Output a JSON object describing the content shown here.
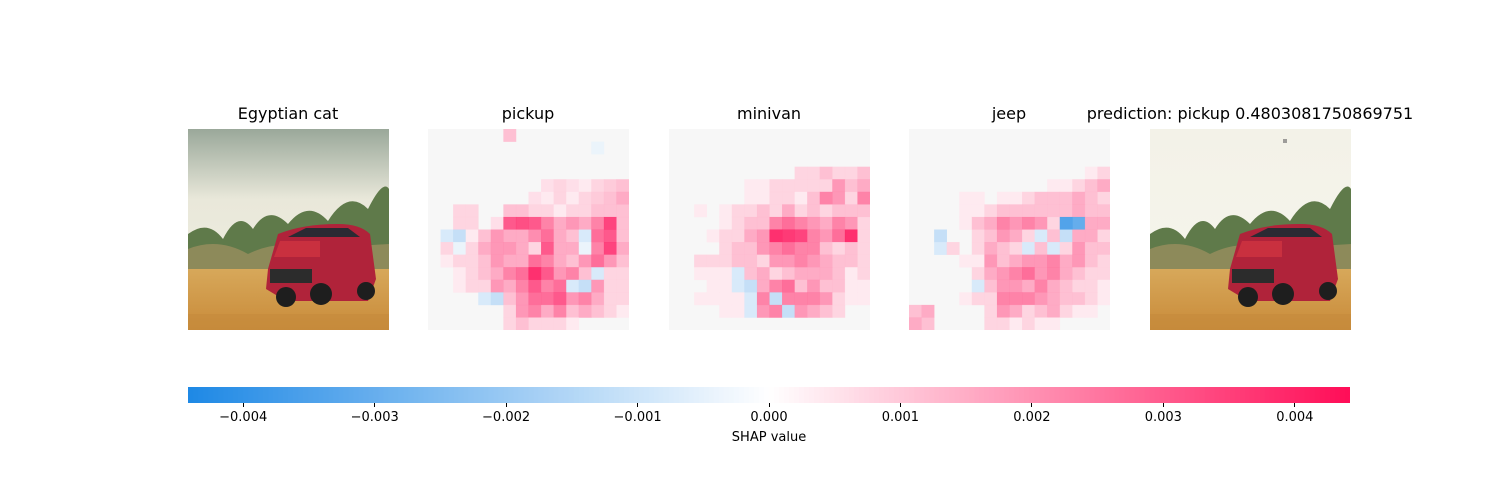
{
  "chart_data": {
    "type": "heatmap",
    "title": "",
    "panels": [
      {
        "kind": "image",
        "title": "Egyptian cat"
      },
      {
        "kind": "shap",
        "title": "pickup"
      },
      {
        "kind": "shap",
        "title": "minivan"
      },
      {
        "kind": "shap",
        "title": "jeep"
      },
      {
        "kind": "image",
        "title": "prediction: pickup 0.4803081750869751"
      }
    ],
    "shap_grid_size": 16,
    "shap_maps": {
      "pickup": [
        [
          0,
          0,
          0,
          0,
          0,
          0,
          0.3,
          0,
          0,
          0,
          0,
          0,
          0,
          0,
          0,
          0
        ],
        [
          0,
          0,
          0,
          0,
          0,
          0,
          0,
          0,
          0,
          0,
          0,
          0,
          0,
          -0.1,
          0,
          0
        ],
        [
          0,
          0,
          0,
          0,
          0,
          0,
          0,
          0,
          0,
          0,
          0,
          0,
          0,
          0,
          0,
          0
        ],
        [
          0,
          0,
          0,
          0,
          0,
          0,
          0,
          0,
          0,
          0,
          0,
          0,
          0,
          0,
          0,
          0
        ],
        [
          0,
          0,
          0,
          0,
          0,
          0,
          0,
          0,
          0,
          0.15,
          0.2,
          0.15,
          0.1,
          0.2,
          0.25,
          0.3
        ],
        [
          0,
          0,
          0,
          0,
          0,
          0,
          0,
          0,
          0.15,
          0.1,
          0.2,
          0.1,
          0.2,
          0.25,
          0.3,
          0.4
        ],
        [
          0,
          0,
          0.2,
          0.2,
          0,
          0,
          0.3,
          0.3,
          0.2,
          0.2,
          0.1,
          0.2,
          0.2,
          0.3,
          0.3,
          0.3
        ],
        [
          0,
          0,
          0.2,
          0.2,
          0,
          0.15,
          0.8,
          0.85,
          0.8,
          0.6,
          0.4,
          0.5,
          0.4,
          0.6,
          0.9,
          0.3
        ],
        [
          0,
          -0.2,
          -0.3,
          0.1,
          0.3,
          0.5,
          0.4,
          0.4,
          0.55,
          0.7,
          0.4,
          0.3,
          -0.2,
          0.7,
          0.8,
          0.3
        ],
        [
          0,
          0.2,
          -0.1,
          0.2,
          0.4,
          0.5,
          0.5,
          0.4,
          0.2,
          0.8,
          0.4,
          0.4,
          -0.1,
          0.6,
          0.9,
          0.4
        ],
        [
          0,
          0.1,
          0.2,
          0.2,
          0.3,
          0.5,
          0.4,
          0.4,
          0.7,
          0.6,
          0.4,
          0.3,
          0.5,
          0.7,
          0.5,
          0.3
        ],
        [
          0,
          0,
          0.1,
          0.2,
          0.3,
          0.4,
          0.6,
          0.7,
          1.0,
          0.8,
          0.5,
          0.6,
          0.3,
          -0.2,
          0.2,
          0.2
        ],
        [
          0,
          0,
          0.1,
          0.2,
          0.2,
          0.5,
          0.4,
          0.6,
          0.8,
          0.6,
          0.7,
          -0.2,
          -0.3,
          0.5,
          0.2,
          0.2
        ],
        [
          0,
          0,
          0,
          0,
          -0.2,
          -0.3,
          0.3,
          0.5,
          0.7,
          0.7,
          0.8,
          0.5,
          0.6,
          0.4,
          0.2,
          0.2
        ],
        [
          0,
          0,
          0,
          0,
          0,
          0,
          0.2,
          0.5,
          0.6,
          0.4,
          0.6,
          0.3,
          0.4,
          0.3,
          0.2,
          0.1
        ],
        [
          0,
          0,
          0,
          0,
          0,
          0,
          0.2,
          0.3,
          0.2,
          0.2,
          0.2,
          0.1,
          0,
          0,
          0,
          0
        ]
      ],
      "minivan": [
        [
          0,
          0,
          0,
          0,
          0,
          0,
          0,
          0,
          0,
          0,
          0,
          0,
          0,
          0,
          0,
          0
        ],
        [
          0,
          0,
          0,
          0,
          0,
          0,
          0,
          0,
          0,
          0,
          0,
          0,
          0,
          0,
          0,
          0
        ],
        [
          0,
          0,
          0,
          0,
          0,
          0,
          0,
          0,
          0,
          0,
          0,
          0,
          0,
          0,
          0,
          0
        ],
        [
          0,
          0,
          0,
          0,
          0,
          0,
          0,
          0,
          0,
          0,
          0.2,
          0.2,
          0.3,
          0.2,
          0.2,
          0.3
        ],
        [
          0,
          0,
          0,
          0,
          0,
          0,
          0.1,
          0.1,
          0.2,
          0.2,
          0.2,
          0.2,
          0.2,
          0.5,
          0.3,
          0.4
        ],
        [
          0,
          0,
          0,
          0,
          0,
          0,
          0.1,
          0.1,
          0.2,
          0.2,
          0.1,
          0.3,
          0.6,
          0.5,
          0.2,
          0.6
        ],
        [
          0,
          0,
          0.1,
          0,
          0.1,
          0.2,
          0.2,
          0.3,
          0.2,
          0.4,
          0.2,
          0.3,
          0.2,
          0.3,
          0.3,
          0.3
        ],
        [
          0,
          0,
          0,
          0,
          0.1,
          0.2,
          0.3,
          0.3,
          0.6,
          0.7,
          0.6,
          0.5,
          0.4,
          0.6,
          0.5,
          0.2
        ],
        [
          0,
          0,
          0,
          0.1,
          0.2,
          0.2,
          0.4,
          0.5,
          1.0,
          0.95,
          0.9,
          0.6,
          0.5,
          0.7,
          1.0,
          0.2
        ],
        [
          0,
          0,
          0,
          0,
          0.2,
          0.3,
          0.3,
          0.5,
          0.6,
          0.7,
          0.6,
          0.6,
          0.3,
          0.2,
          0.3,
          0.2
        ],
        [
          0,
          0,
          0.2,
          0.2,
          0.2,
          0.3,
          0.3,
          0.2,
          0.5,
          0.5,
          0.6,
          0.5,
          0.4,
          0.3,
          0.3,
          0.2
        ],
        [
          0,
          0,
          0.1,
          0.1,
          0.1,
          -0.2,
          0.3,
          0.4,
          0.2,
          0.3,
          0.4,
          0.4,
          0.4,
          0.3,
          0.1,
          0.2
        ],
        [
          0,
          0,
          0,
          0.1,
          0.1,
          -0.2,
          -0.3,
          0.4,
          0.6,
          0.7,
          0.3,
          0.5,
          0.3,
          0.3,
          0.1,
          0.1
        ],
        [
          0,
          0,
          0.1,
          0.1,
          0.1,
          0.1,
          -0.2,
          0.6,
          -0.3,
          0.6,
          0.6,
          0.6,
          0.5,
          0.2,
          0.1,
          0.1
        ],
        [
          0,
          0,
          0,
          0,
          0.1,
          0.1,
          -0.2,
          0.5,
          0.6,
          -0.3,
          0.5,
          0.4,
          0.3,
          0.2,
          0,
          0
        ],
        [
          0,
          0,
          0,
          0,
          0,
          0,
          0,
          0,
          0,
          0,
          0,
          0,
          0,
          0,
          0,
          0
        ]
      ],
      "jeep": [
        [
          0,
          0,
          0,
          0,
          0,
          0,
          0,
          0,
          0,
          0,
          0,
          0,
          0,
          0,
          0,
          0
        ],
        [
          0,
          0,
          0,
          0,
          0,
          0,
          0,
          0,
          0,
          0,
          0,
          0,
          0,
          0,
          0,
          0
        ],
        [
          0,
          0,
          0,
          0,
          0,
          0,
          0,
          0,
          0,
          0,
          0,
          0,
          0,
          0,
          0,
          0
        ],
        [
          0,
          0,
          0,
          0,
          0,
          0,
          0,
          0,
          0,
          0,
          0,
          0,
          0,
          0,
          0.1,
          0.2
        ],
        [
          0,
          0,
          0,
          0,
          0,
          0,
          0,
          0,
          0,
          0,
          0,
          0.1,
          0.1,
          0.2,
          0.3,
          0.4
        ],
        [
          0,
          0,
          0,
          0,
          0.1,
          0.1,
          0,
          0.1,
          0.1,
          0.2,
          0.3,
          0.3,
          0.3,
          0.4,
          0.3,
          0.2
        ],
        [
          0,
          0,
          0,
          0,
          0.1,
          0.1,
          0.2,
          0.3,
          0.3,
          0.3,
          0.3,
          0.3,
          0.3,
          0.4,
          0.3,
          0.3
        ],
        [
          0,
          0,
          0,
          0,
          0.1,
          0.3,
          0.4,
          0.6,
          0.5,
          0.6,
          0.5,
          0.2,
          -0.9,
          -0.8,
          0.4,
          0.4
        ],
        [
          0,
          0,
          -0.3,
          0,
          0,
          0.2,
          0.3,
          0.5,
          0.4,
          0.2,
          -0.2,
          0.3,
          -0.3,
          0.4,
          0.4,
          0.2
        ],
        [
          0,
          0,
          -0.2,
          0.2,
          0,
          0.2,
          0.4,
          0.3,
          0.2,
          -0.2,
          0.3,
          -0.2,
          0.2,
          0.5,
          0.3,
          0.3
        ],
        [
          0,
          0,
          0,
          0,
          0.1,
          0.1,
          0.5,
          0.3,
          0.4,
          0.5,
          0.5,
          0.6,
          0.4,
          0.5,
          0.3,
          0.2
        ],
        [
          0,
          0,
          0,
          0,
          0,
          0.2,
          0.4,
          0.5,
          0.6,
          0.7,
          0.5,
          0.6,
          0.4,
          0.3,
          0.2,
          0.2
        ],
        [
          0,
          0,
          0,
          0,
          0,
          -0.2,
          0.3,
          0.5,
          0.5,
          0.4,
          0.6,
          0.4,
          0.3,
          0.2,
          0.2,
          0.1
        ],
        [
          0,
          0,
          0,
          0,
          0.1,
          0.2,
          0.2,
          0.6,
          0.6,
          0.6,
          0.5,
          0.4,
          0.3,
          0.3,
          0.2,
          0.1
        ],
        [
          0.3,
          0.4,
          0,
          0,
          0,
          0,
          0.2,
          0.5,
          0.4,
          0.2,
          0.3,
          0.4,
          0.2,
          0.1,
          0.1,
          0
        ],
        [
          0.4,
          0.3,
          0,
          0,
          0,
          0,
          0.2,
          0.2,
          0.1,
          0.2,
          0.1,
          0.1,
          0,
          0,
          0,
          0
        ]
      ]
    },
    "colorbar": {
      "label": "SHAP value",
      "vmin": -0.00442,
      "vmax": 0.00442,
      "ticks": [
        -0.004,
        -0.003,
        -0.002,
        -0.001,
        0.0,
        0.001,
        0.002,
        0.003,
        0.004
      ],
      "tick_labels": [
        "−0.004",
        "−0.003",
        "−0.002",
        "−0.001",
        "0.000",
        "0.001",
        "0.002",
        "0.003",
        "0.004"
      ],
      "negative_color": "#1e88e5",
      "positive_color": "#ff0d57"
    }
  }
}
